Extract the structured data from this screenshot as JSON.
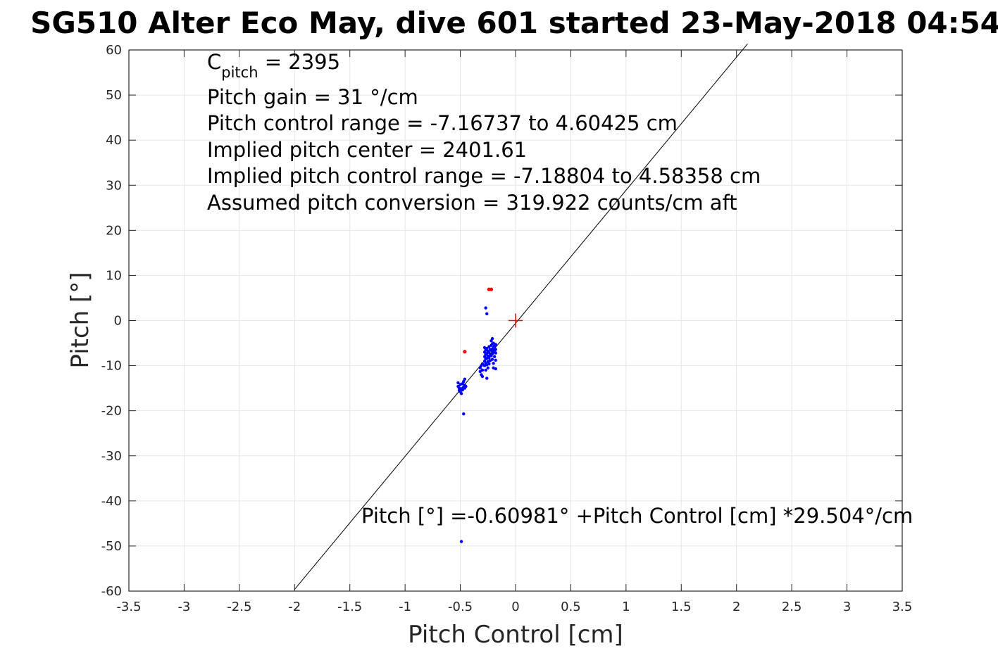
{
  "chart_data": {
    "type": "scatter",
    "title": "SG510 Alter Eco May, dive 601 started 23-May-2018 04:54",
    "xlabel": "Pitch Control [cm]",
    "ylabel": "Pitch [°]",
    "xlim": [
      -3.5,
      3.5
    ],
    "ylim": [
      -60,
      60
    ],
    "grid": true,
    "xticks": [
      "-3.5",
      "-3",
      "-2.5",
      "-2",
      "-1.5",
      "-1",
      "-0.5",
      "0",
      "0.5",
      "1",
      "1.5",
      "2",
      "2.5",
      "3",
      "3.5"
    ],
    "yticks": [
      "-60",
      "-50",
      "-40",
      "-30",
      "-20",
      "-10",
      "0",
      "10",
      "20",
      "30",
      "40",
      "50",
      "60"
    ],
    "fit_line": {
      "intercept": -0.60981,
      "slope": 29.504,
      "x_range": [
        -2.0,
        2.1
      ]
    },
    "center_marker": {
      "x": 0,
      "y": 0,
      "color": "#ff0000"
    },
    "colors": {
      "data": "#0000ff",
      "outliers": "#ff0000",
      "fit": "#000000",
      "grid": "#e6e6e6"
    },
    "series": [
      {
        "color": "#0000ff",
        "points": [
          [
            -0.52,
            -13.8
          ],
          [
            -0.52,
            -14.6
          ],
          [
            -0.51,
            -15.0
          ],
          [
            -0.51,
            -15.5
          ],
          [
            -0.5,
            -14.2
          ],
          [
            -0.5,
            -15.8
          ],
          [
            -0.49,
            -16.2
          ],
          [
            -0.49,
            -15.1
          ],
          [
            -0.48,
            -14.0
          ],
          [
            -0.48,
            -15.4
          ],
          [
            -0.47,
            -13.5
          ],
          [
            -0.47,
            -14.7
          ],
          [
            -0.46,
            -13.0
          ],
          [
            -0.46,
            -14.3
          ],
          [
            -0.46,
            -15.0
          ],
          [
            -0.45,
            -14.6
          ],
          [
            -0.47,
            -20.7
          ],
          [
            -0.49,
            -49.0
          ],
          [
            -0.32,
            -10.5
          ],
          [
            -0.32,
            -11.3
          ],
          [
            -0.31,
            -12.0
          ],
          [
            -0.31,
            -10.0
          ],
          [
            -0.3,
            -11.0
          ],
          [
            -0.3,
            -9.6
          ],
          [
            -0.3,
            -12.4
          ],
          [
            -0.28,
            -6.0
          ],
          [
            -0.28,
            -7.0
          ],
          [
            -0.28,
            -8.0
          ],
          [
            -0.28,
            -9.0
          ],
          [
            -0.28,
            -10.0
          ],
          [
            -0.27,
            -6.5
          ],
          [
            -0.27,
            -7.5
          ],
          [
            -0.27,
            -8.5
          ],
          [
            -0.27,
            -9.5
          ],
          [
            -0.27,
            -11.0
          ],
          [
            -0.26,
            -6.2
          ],
          [
            -0.26,
            -7.3
          ],
          [
            -0.26,
            -8.4
          ],
          [
            -0.26,
            -9.8
          ],
          [
            -0.26,
            -12.8
          ],
          [
            -0.25,
            -6.8
          ],
          [
            -0.25,
            -7.9
          ],
          [
            -0.25,
            -9.1
          ],
          [
            -0.25,
            -10.5
          ],
          [
            -0.24,
            -5.8
          ],
          [
            -0.24,
            -7.1
          ],
          [
            -0.24,
            -8.3
          ],
          [
            -0.24,
            -9.6
          ],
          [
            -0.23,
            -6.4
          ],
          [
            -0.23,
            -7.7
          ],
          [
            -0.23,
            -8.9
          ],
          [
            -0.22,
            -4.5
          ],
          [
            -0.22,
            -5.5
          ],
          [
            -0.22,
            -6.6
          ],
          [
            -0.22,
            -7.8
          ],
          [
            -0.21,
            -4.0
          ],
          [
            -0.21,
            -5.2
          ],
          [
            -0.21,
            -6.3
          ],
          [
            -0.21,
            -7.4
          ],
          [
            -0.21,
            -8.6
          ],
          [
            -0.2,
            -5.0
          ],
          [
            -0.2,
            -6.0
          ],
          [
            -0.2,
            -7.0
          ],
          [
            -0.2,
            -9.5
          ],
          [
            -0.2,
            -10.5
          ],
          [
            -0.19,
            -5.6
          ],
          [
            -0.19,
            -6.8
          ],
          [
            -0.19,
            -8.0
          ],
          [
            -0.18,
            -5.3
          ],
          [
            -0.18,
            -6.4
          ],
          [
            -0.18,
            -7.2
          ],
          [
            -0.18,
            -8.8
          ],
          [
            -0.18,
            -10.7
          ],
          [
            -0.27,
            2.8
          ],
          [
            -0.26,
            1.5
          ]
        ]
      },
      {
        "color": "#ff0000",
        "points": [
          [
            -0.24,
            6.9
          ],
          [
            -0.22,
            6.9
          ],
          [
            -0.46,
            -6.9
          ]
        ]
      }
    ],
    "annotations": {
      "c_pitch_symbol": "C",
      "c_pitch_sub": "pitch",
      "c_pitch_value": " = 2395",
      "lines": [
        "Pitch gain = 31 °/cm",
        "Pitch control range = -7.16737 to 4.60425 cm",
        "Implied pitch center = 2401.61",
        "Implied pitch control range = -7.18804 to 4.58358 cm",
        "Assumed pitch conversion = 319.922 counts/cm aft"
      ],
      "fit_label": "Pitch [°] =-0.60981° +Pitch Control [cm] *29.504°/cm"
    }
  }
}
